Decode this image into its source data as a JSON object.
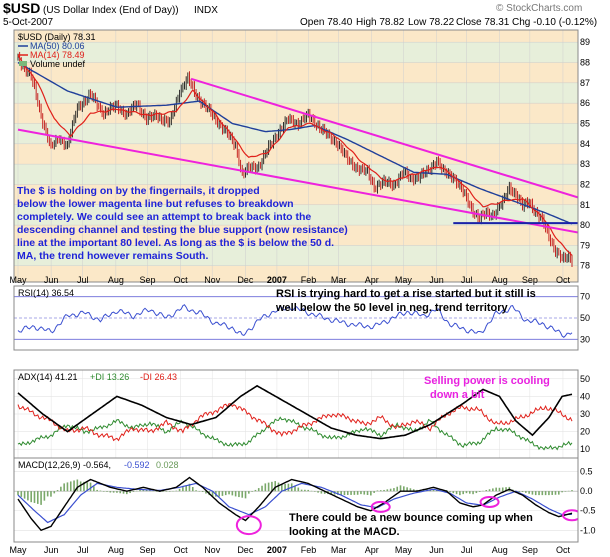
{
  "chart_data": {
    "type": "line",
    "header": {
      "symbol": "$USD",
      "name": "(US Dollar Index (End of Day))",
      "exchange": "INDX",
      "date": "5-Oct-2007",
      "watermark": "© StockCharts.com",
      "ohlc": {
        "open": "Open 78.40",
        "high": "High 78.82",
        "low": "Low 78.22",
        "close": "Close 78.31",
        "chg": "Chg -0.10 (-0.12%)"
      }
    },
    "price_panel": {
      "legend": {
        "title": "$USD (Daily) 78.31",
        "ma50": "MA(50) 80.06",
        "ma14": "MA(14) 78.49",
        "volume": "Volume undef"
      },
      "ylim": [
        77.2,
        89.6
      ],
      "yticks": [
        78,
        79,
        80,
        81,
        82,
        83,
        84,
        85,
        86,
        87,
        88,
        89
      ],
      "price_knots": [
        [
          0,
          88.2
        ],
        [
          8,
          87.3
        ],
        [
          14,
          85.4
        ],
        [
          20,
          83.8
        ],
        [
          25,
          84.3
        ],
        [
          30,
          83.9
        ],
        [
          36,
          85.8
        ],
        [
          44,
          86.4
        ],
        [
          52,
          85.5
        ],
        [
          60,
          85.9
        ],
        [
          66,
          85.4
        ],
        [
          72,
          86.0
        ],
        [
          78,
          85.2
        ],
        [
          84,
          85.4
        ],
        [
          92,
          85.0
        ],
        [
          98,
          86.6
        ],
        [
          103,
          87.2
        ],
        [
          108,
          86.4
        ],
        [
          114,
          85.8
        ],
        [
          120,
          85.2
        ],
        [
          126,
          84.6
        ],
        [
          132,
          83.9
        ],
        [
          136,
          82.5
        ],
        [
          140,
          82.8
        ],
        [
          146,
          82.9
        ],
        [
          152,
          83.8
        ],
        [
          158,
          84.6
        ],
        [
          164,
          85.2
        ],
        [
          170,
          85.0
        ],
        [
          176,
          85.4
        ],
        [
          182,
          84.9
        ],
        [
          188,
          84.4
        ],
        [
          194,
          84.0
        ],
        [
          200,
          83.2
        ],
        [
          206,
          82.8
        ],
        [
          212,
          82.6
        ],
        [
          216,
          81.9
        ],
        [
          222,
          82.1
        ],
        [
          228,
          82.0
        ],
        [
          234,
          82.6
        ],
        [
          238,
          82.3
        ],
        [
          244,
          82.4
        ],
        [
          248,
          82.6
        ],
        [
          254,
          83.2
        ],
        [
          258,
          82.6
        ],
        [
          264,
          82.4
        ],
        [
          270,
          81.6
        ],
        [
          276,
          80.7
        ],
        [
          280,
          80.3
        ],
        [
          284,
          80.6
        ],
        [
          288,
          80.5
        ],
        [
          294,
          81.1
        ],
        [
          298,
          81.9
        ],
        [
          302,
          81.5
        ],
        [
          306,
          80.9
        ],
        [
          310,
          81.2
        ],
        [
          314,
          80.6
        ],
        [
          318,
          80.2
        ],
        [
          322,
          79.5
        ],
        [
          326,
          78.7
        ],
        [
          330,
          78.3
        ],
        [
          334,
          78.5
        ],
        [
          336,
          78.31
        ]
      ],
      "ma50_knots": [
        [
          0,
          88.0
        ],
        [
          30,
          86.6
        ],
        [
          60,
          85.8
        ],
        [
          90,
          85.9
        ],
        [
          110,
          86.1
        ],
        [
          130,
          85.0
        ],
        [
          150,
          84.6
        ],
        [
          165,
          84.7
        ],
        [
          180,
          84.9
        ],
        [
          200,
          84.2
        ],
        [
          220,
          83.4
        ],
        [
          240,
          82.6
        ],
        [
          260,
          82.5
        ],
        [
          280,
          81.8
        ],
        [
          300,
          81.2
        ],
        [
          320,
          80.6
        ],
        [
          336,
          80.06
        ]
      ],
      "ma14_knots": [
        [
          0,
          88.3
        ],
        [
          12,
          87.0
        ],
        [
          22,
          85.2
        ],
        [
          32,
          84.4
        ],
        [
          44,
          85.5
        ],
        [
          60,
          85.7
        ],
        [
          80,
          85.4
        ],
        [
          96,
          85.6
        ],
        [
          106,
          86.6
        ],
        [
          118,
          85.6
        ],
        [
          130,
          84.4
        ],
        [
          140,
          83.3
        ],
        [
          152,
          83.6
        ],
        [
          164,
          84.8
        ],
        [
          178,
          85.0
        ],
        [
          194,
          84.3
        ],
        [
          210,
          83.0
        ],
        [
          224,
          82.1
        ],
        [
          240,
          82.5
        ],
        [
          256,
          82.9
        ],
        [
          270,
          82.0
        ],
        [
          282,
          80.9
        ],
        [
          296,
          81.2
        ],
        [
          306,
          81.3
        ],
        [
          318,
          80.4
        ],
        [
          328,
          79.2
        ],
        [
          336,
          78.49
        ]
      ],
      "magenta_upper": [
        [
          105,
          87.2
        ],
        [
          336,
          81.3
        ]
      ],
      "magenta_lower": [
        [
          0,
          84.7
        ],
        [
          336,
          79.6
        ]
      ],
      "blue_support": [
        [
          264,
          80.1
        ],
        [
          336,
          80.1
        ]
      ],
      "annotation": [
        "The $ is holding on by the fingernails, it dropped",
        "below the lower magenta line but refuses to breakdown",
        "completely. We could see an attempt to break back into the",
        "descending channel and testing the blue support (now resistance)",
        "line at the important 80 level. As long as the $ is below the 50 d.",
        "MA, the trend however remains South."
      ]
    },
    "x_months": [
      "May",
      "Jun",
      "Jul",
      "Aug",
      "Sep",
      "Oct",
      "Nov",
      "Dec",
      "2007",
      "Feb",
      "Mar",
      "Apr",
      "May",
      "Jun",
      "Jul",
      "Aug",
      "Sep",
      "Oct"
    ],
    "x_month_days": [
      0,
      22,
      43,
      65,
      86,
      108,
      129,
      151,
      172,
      193,
      213,
      235,
      256,
      278,
      298,
      320,
      340,
      362
    ],
    "rsi_panel": {
      "legend": "RSI(14) 36.54",
      "ylim": [
        20,
        80
      ],
      "yticks": [
        30,
        50,
        70
      ],
      "levels": [
        30,
        50,
        70
      ],
      "knots": [
        [
          0,
          38
        ],
        [
          10,
          42
        ],
        [
          20,
          37
        ],
        [
          30,
          52
        ],
        [
          40,
          55
        ],
        [
          50,
          48
        ],
        [
          60,
          57
        ],
        [
          70,
          52
        ],
        [
          80,
          58
        ],
        [
          90,
          50
        ],
        [
          100,
          60
        ],
        [
          110,
          55
        ],
        [
          120,
          45
        ],
        [
          130,
          41
        ],
        [
          136,
          33
        ],
        [
          146,
          48
        ],
        [
          156,
          57
        ],
        [
          166,
          60
        ],
        [
          176,
          55
        ],
        [
          186,
          50
        ],
        [
          196,
          46
        ],
        [
          206,
          43
        ],
        [
          216,
          42
        ],
        [
          226,
          49
        ],
        [
          236,
          56
        ],
        [
          246,
          52
        ],
        [
          254,
          58
        ],
        [
          262,
          44
        ],
        [
          272,
          39
        ],
        [
          280,
          35
        ],
        [
          290,
          54
        ],
        [
          300,
          60
        ],
        [
          308,
          48
        ],
        [
          318,
          45
        ],
        [
          326,
          38
        ],
        [
          332,
          34
        ],
        [
          336,
          36.54
        ]
      ],
      "annotation": [
        "RSI is trying hard to get a rise started but it still is",
        "well below the 50 level in neg. trend territory"
      ]
    },
    "adx_panel": {
      "legend": {
        "adx": "ADX(14) 41.21",
        "pdi": "+DI 13.26",
        "mdi": "-DI 26.43"
      },
      "ylim": [
        5,
        55
      ],
      "yticks": [
        10,
        20,
        30,
        40,
        50
      ],
      "adx_knots": [
        [
          0,
          42
        ],
        [
          15,
          30
        ],
        [
          30,
          20
        ],
        [
          45,
          30
        ],
        [
          60,
          40
        ],
        [
          75,
          35
        ],
        [
          90,
          28
        ],
        [
          105,
          24
        ],
        [
          120,
          28
        ],
        [
          135,
          40
        ],
        [
          145,
          46
        ],
        [
          160,
          38
        ],
        [
          175,
          30
        ],
        [
          190,
          22
        ],
        [
          205,
          18
        ],
        [
          220,
          16
        ],
        [
          235,
          18
        ],
        [
          250,
          24
        ],
        [
          260,
          30
        ],
        [
          270,
          36
        ],
        [
          282,
          44
        ],
        [
          292,
          40
        ],
        [
          302,
          26
        ],
        [
          312,
          18
        ],
        [
          322,
          28
        ],
        [
          330,
          40
        ],
        [
          336,
          41.21
        ]
      ],
      "pdi_knots": [
        [
          0,
          12
        ],
        [
          10,
          15
        ],
        [
          20,
          18
        ],
        [
          30,
          24
        ],
        [
          40,
          20
        ],
        [
          50,
          22
        ],
        [
          60,
          26
        ],
        [
          70,
          22
        ],
        [
          80,
          25
        ],
        [
          90,
          20
        ],
        [
          100,
          26
        ],
        [
          110,
          20
        ],
        [
          120,
          15
        ],
        [
          130,
          12
        ],
        [
          140,
          14
        ],
        [
          150,
          22
        ],
        [
          160,
          28
        ],
        [
          170,
          24
        ],
        [
          180,
          20
        ],
        [
          190,
          16
        ],
        [
          200,
          18
        ],
        [
          210,
          22
        ],
        [
          220,
          18
        ],
        [
          230,
          24
        ],
        [
          240,
          20
        ],
        [
          250,
          26
        ],
        [
          260,
          18
        ],
        [
          270,
          12
        ],
        [
          280,
          14
        ],
        [
          290,
          22
        ],
        [
          300,
          20
        ],
        [
          310,
          14
        ],
        [
          320,
          10
        ],
        [
          330,
          12
        ],
        [
          336,
          13.26
        ]
      ],
      "mdi_knots": [
        [
          0,
          35
        ],
        [
          10,
          30
        ],
        [
          20,
          26
        ],
        [
          30,
          20
        ],
        [
          40,
          22
        ],
        [
          50,
          18
        ],
        [
          60,
          16
        ],
        [
          70,
          22
        ],
        [
          80,
          20
        ],
        [
          90,
          25
        ],
        [
          100,
          20
        ],
        [
          110,
          28
        ],
        [
          120,
          32
        ],
        [
          130,
          36
        ],
        [
          140,
          30
        ],
        [
          150,
          24
        ],
        [
          160,
          18
        ],
        [
          170,
          22
        ],
        [
          180,
          26
        ],
        [
          190,
          30
        ],
        [
          200,
          28
        ],
        [
          210,
          24
        ],
        [
          220,
          28
        ],
        [
          230,
          22
        ],
        [
          240,
          26
        ],
        [
          250,
          22
        ],
        [
          260,
          30
        ],
        [
          270,
          34
        ],
        [
          280,
          32
        ],
        [
          290,
          24
        ],
        [
          300,
          26
        ],
        [
          310,
          30
        ],
        [
          320,
          34
        ],
        [
          330,
          30
        ],
        [
          336,
          26.43
        ]
      ],
      "annotation": [
        "Selling power is cooling",
        "down a bit"
      ]
    },
    "macd_panel": {
      "legend": {
        "macd": "MACD(12,26,9) -0.564,",
        "signal": "-0.592",
        "hist": "0.028"
      },
      "ylim": [
        -1.3,
        0.85
      ],
      "yticks": [
        [
          "0.5",
          0.5
        ],
        [
          "0.0",
          0.0
        ],
        [
          "-0.5",
          -0.5
        ],
        [
          "-1.0",
          -1.0
        ]
      ],
      "macd_knots": [
        [
          0,
          -0.2
        ],
        [
          8,
          -0.7
        ],
        [
          14,
          -1.0
        ],
        [
          20,
          -0.9
        ],
        [
          28,
          -0.4
        ],
        [
          36,
          0.1
        ],
        [
          44,
          0.3
        ],
        [
          56,
          0.1
        ],
        [
          66,
          0.0
        ],
        [
          76,
          0.1
        ],
        [
          86,
          0.0
        ],
        [
          96,
          0.1
        ],
        [
          104,
          0.35
        ],
        [
          112,
          0.1
        ],
        [
          122,
          -0.3
        ],
        [
          132,
          -0.6
        ],
        [
          138,
          -0.75
        ],
        [
          146,
          -0.4
        ],
        [
          156,
          0.1
        ],
        [
          166,
          0.3
        ],
        [
          176,
          0.2
        ],
        [
          186,
          0.0
        ],
        [
          196,
          -0.2
        ],
        [
          206,
          -0.4
        ],
        [
          214,
          -0.5
        ],
        [
          222,
          -0.3
        ],
        [
          232,
          0.0
        ],
        [
          242,
          0.0
        ],
        [
          252,
          0.1
        ],
        [
          260,
          0.0
        ],
        [
          268,
          -0.3
        ],
        [
          276,
          -0.4
        ],
        [
          282,
          -0.35
        ],
        [
          290,
          -0.1
        ],
        [
          298,
          0.05
        ],
        [
          306,
          -0.1
        ],
        [
          314,
          -0.35
        ],
        [
          322,
          -0.55
        ],
        [
          328,
          -0.65
        ],
        [
          336,
          -0.564
        ]
      ],
      "signal_knots": [
        [
          0,
          -0.1
        ],
        [
          10,
          -0.5
        ],
        [
          18,
          -0.8
        ],
        [
          28,
          -0.6
        ],
        [
          38,
          -0.1
        ],
        [
          48,
          0.2
        ],
        [
          60,
          0.1
        ],
        [
          72,
          0.05
        ],
        [
          86,
          0.02
        ],
        [
          98,
          0.1
        ],
        [
          108,
          0.2
        ],
        [
          118,
          0.0
        ],
        [
          128,
          -0.4
        ],
        [
          140,
          -0.6
        ],
        [
          150,
          -0.4
        ],
        [
          160,
          0.0
        ],
        [
          172,
          0.2
        ],
        [
          184,
          0.1
        ],
        [
          196,
          -0.1
        ],
        [
          208,
          -0.35
        ],
        [
          218,
          -0.42
        ],
        [
          228,
          -0.2
        ],
        [
          240,
          -0.05
        ],
        [
          252,
          0.05
        ],
        [
          262,
          -0.05
        ],
        [
          272,
          -0.3
        ],
        [
          282,
          -0.36
        ],
        [
          292,
          -0.15
        ],
        [
          302,
          0.0
        ],
        [
          312,
          -0.2
        ],
        [
          322,
          -0.45
        ],
        [
          330,
          -0.6
        ],
        [
          336,
          -0.592
        ]
      ],
      "circles_days": [
        140,
        220,
        286,
        336
      ],
      "annotation": [
        "There could be a new bounce coming up when",
        "looking at the MACD."
      ]
    },
    "colors": {
      "bg_orange": "#fbe8c8",
      "bg_green": "#e4f0dc",
      "price": "#000000",
      "ma50": "#1f3f9a",
      "ma14": "#e0201a",
      "magenta": "#ee22dd",
      "support": "#1a22a8",
      "rsi": "#3a4fd0",
      "pdi": "#2e8a2e",
      "mdi": "#e0201a",
      "annotation_blue": "#1e24d8",
      "annotation_magenta": "#e822e0"
    }
  }
}
